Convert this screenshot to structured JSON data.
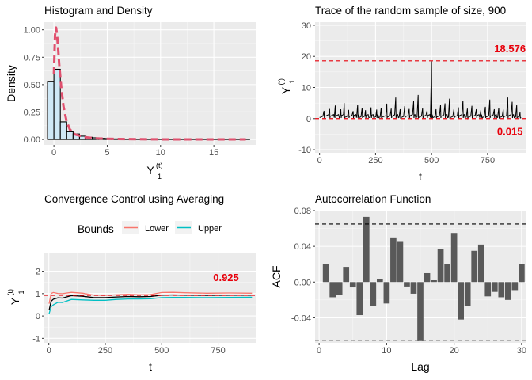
{
  "chart_data": [
    {
      "id": "hist",
      "type": "bar",
      "title": "Histogram and Density",
      "xlabel": "Y",
      "xlabel_sub": "1",
      "xlabel_sup": "(t)",
      "ylabel": "Density",
      "xlim": [
        -0.9,
        19.0
      ],
      "ylim": [
        -0.05,
        1.07
      ],
      "xticks": [
        0,
        5,
        10,
        15
      ],
      "yticks": [
        0.0,
        0.25,
        0.5,
        0.75,
        1.0
      ],
      "ytick_labels": [
        "0.00",
        "0.25",
        "0.50",
        "0.75",
        "1.00"
      ],
      "bin_width": 0.6,
      "bars": [
        {
          "x": -0.3,
          "value": 0.53
        },
        {
          "x": 0.3,
          "value": 0.64
        },
        {
          "x": 0.9,
          "value": 0.16
        },
        {
          "x": 1.5,
          "value": 0.07
        },
        {
          "x": 2.1,
          "value": 0.05
        },
        {
          "x": 2.7,
          "value": 0.03
        },
        {
          "x": 3.3,
          "value": 0.02
        },
        {
          "x": 3.9,
          "value": 0.015
        },
        {
          "x": 4.5,
          "value": 0.01
        },
        {
          "x": 5.1,
          "value": 0.008
        },
        {
          "x": 5.7,
          "value": 0.005
        },
        {
          "x": 6.3,
          "value": 0.004
        }
      ],
      "density_x": [
        0,
        0.1,
        0.2,
        0.3,
        0.4,
        0.5,
        0.7,
        0.9,
        1.2,
        1.5,
        2,
        3,
        4,
        5,
        6,
        8,
        10,
        12,
        15,
        18
      ],
      "density_y": [
        0.6,
        0.95,
        1.02,
        0.95,
        0.82,
        0.68,
        0.46,
        0.3,
        0.16,
        0.09,
        0.045,
        0.02,
        0.01,
        0.006,
        0.004,
        0.002,
        0.001,
        0.001,
        0.001,
        0.001
      ],
      "bar_fill": "#cfe8f6",
      "bar_stroke": "#000000",
      "density_color": "#e0506e"
    },
    {
      "id": "trace",
      "type": "line",
      "title": "Trace of the random sample of size,  900",
      "xlabel": "t",
      "ylabel": "Y",
      "ylabel_sub": "1",
      "ylabel_sup": "(t)",
      "xlim": [
        -20,
        920
      ],
      "ylim": [
        -11,
        31
      ],
      "xticks": [
        0,
        250,
        500,
        750
      ],
      "yticks": [
        -10,
        0,
        10,
        20,
        30
      ],
      "upper_bound": 18.576,
      "lower_bound": 0.015,
      "upper_label": "18.576",
      "lower_label": "0.015",
      "spikes": [
        {
          "t": 20,
          "value": 2.5
        },
        {
          "t": 45,
          "value": 3.1
        },
        {
          "t": 70,
          "value": 4.2
        },
        {
          "t": 95,
          "value": 3.0
        },
        {
          "t": 110,
          "value": 5.0
        },
        {
          "t": 130,
          "value": 2.8
        },
        {
          "t": 150,
          "value": 2.4
        },
        {
          "t": 170,
          "value": 4.4
        },
        {
          "t": 190,
          "value": 3.4
        },
        {
          "t": 205,
          "value": 2.7
        },
        {
          "t": 230,
          "value": 3.6
        },
        {
          "t": 255,
          "value": 2.9
        },
        {
          "t": 275,
          "value": 3.5
        },
        {
          "t": 300,
          "value": 4.8
        },
        {
          "t": 320,
          "value": 3.2
        },
        {
          "t": 340,
          "value": 6.8
        },
        {
          "t": 360,
          "value": 3.0
        },
        {
          "t": 380,
          "value": 4.0
        },
        {
          "t": 400,
          "value": 3.1
        },
        {
          "t": 420,
          "value": 5.6
        },
        {
          "t": 440,
          "value": 7.6
        },
        {
          "t": 460,
          "value": 3.3
        },
        {
          "t": 480,
          "value": 2.6
        },
        {
          "t": 500,
          "value": 18.4
        },
        {
          "t": 520,
          "value": 3.0
        },
        {
          "t": 540,
          "value": 4.4
        },
        {
          "t": 560,
          "value": 4.9
        },
        {
          "t": 580,
          "value": 6.4
        },
        {
          "t": 600,
          "value": 3.0
        },
        {
          "t": 620,
          "value": 3.6
        },
        {
          "t": 640,
          "value": 5.8
        },
        {
          "t": 660,
          "value": 3.2
        },
        {
          "t": 680,
          "value": 4.1
        },
        {
          "t": 700,
          "value": 3.0
        },
        {
          "t": 720,
          "value": 2.7
        },
        {
          "t": 740,
          "value": 3.8
        },
        {
          "t": 760,
          "value": 6.1
        },
        {
          "t": 780,
          "value": 3.0
        },
        {
          "t": 800,
          "value": 3.4
        },
        {
          "t": 820,
          "value": 2.9
        },
        {
          "t": 840,
          "value": 6.8
        },
        {
          "t": 860,
          "value": 5.4
        },
        {
          "t": 880,
          "value": 4.4
        },
        {
          "t": 895,
          "value": 2.0
        }
      ],
      "line_color": "#000000",
      "bound_color": "#e8000b"
    },
    {
      "id": "conv",
      "type": "line",
      "title": "Convergence Control using Averaging",
      "xlabel": "t",
      "ylabel": "Y",
      "ylabel_sub": "1",
      "ylabel_sup": "(t)",
      "xlim": [
        -20,
        920
      ],
      "ylim": [
        -1.2,
        2.8
      ],
      "xticks": [
        0,
        250,
        500,
        750
      ],
      "yticks": [
        -1,
        0,
        1,
        2
      ],
      "reference": 0.925,
      "reference_label": "0.925",
      "legend_title": "Bounds",
      "legend_position": "top",
      "series": [
        {
          "name": "Lower",
          "color": "#f8766d",
          "x": [
            1,
            10,
            20,
            40,
            60,
            100,
            150,
            200,
            250,
            300,
            350,
            400,
            450,
            500,
            550,
            600,
            700,
            800,
            900
          ],
          "y": [
            0.6,
            0.95,
            1.1,
            0.95,
            1.05,
            1.0,
            1.02,
            0.93,
            0.92,
            0.95,
            0.97,
            0.95,
            0.96,
            1.05,
            1.06,
            1.04,
            1.02,
            1.03,
            1.02
          ]
        },
        {
          "name": "",
          "color": "#000000",
          "x": [
            1,
            10,
            20,
            40,
            60,
            100,
            150,
            200,
            250,
            300,
            350,
            400,
            450,
            500,
            550,
            600,
            700,
            800,
            900
          ],
          "y": [
            0.3,
            0.6,
            0.8,
            0.75,
            0.85,
            0.85,
            0.88,
            0.82,
            0.82,
            0.85,
            0.87,
            0.86,
            0.87,
            0.93,
            0.94,
            0.93,
            0.92,
            0.93,
            0.93
          ]
        },
        {
          "name": "Upper",
          "color": "#00bfc4",
          "x": [
            1,
            10,
            20,
            40,
            60,
            100,
            150,
            200,
            250,
            300,
            350,
            400,
            450,
            500,
            550,
            600,
            700,
            800,
            900
          ],
          "y": [
            0.15,
            0.35,
            0.55,
            0.55,
            0.65,
            0.68,
            0.72,
            0.7,
            0.7,
            0.74,
            0.76,
            0.76,
            0.77,
            0.82,
            0.83,
            0.83,
            0.82,
            0.83,
            0.84
          ]
        }
      ],
      "reference_color": "#e8000b"
    },
    {
      "id": "acf",
      "type": "bar",
      "title": "Autocorrelation Function",
      "xlabel": "Lag",
      "ylabel": "ACF",
      "xlim": [
        -0.6,
        30.6
      ],
      "ylim": [
        -0.068,
        0.08
      ],
      "xticks": [
        0,
        10,
        20,
        30
      ],
      "yticks": [
        -0.04,
        0.0,
        0.04,
        0.08
      ],
      "ytick_labels": [
        "-0.04",
        "0.00",
        "0.04",
        "0.08"
      ],
      "ci": 0.065,
      "lags": [
        1,
        2,
        3,
        4,
        5,
        6,
        7,
        8,
        9,
        10,
        11,
        12,
        13,
        14,
        15,
        16,
        17,
        18,
        19,
        20,
        21,
        22,
        23,
        24,
        25,
        26,
        27,
        28,
        29,
        30
      ],
      "values": [
        0.02,
        -0.017,
        -0.014,
        0.017,
        -0.006,
        -0.037,
        0.073,
        -0.027,
        0.003,
        -0.024,
        0.05,
        0.045,
        -0.005,
        -0.013,
        -0.066,
        0.01,
        0.002,
        0.037,
        0.02,
        0.055,
        -0.042,
        -0.027,
        0.035,
        0.042,
        -0.016,
        -0.011,
        -0.017,
        -0.02,
        -0.009,
        0.02
      ],
      "bar_color": "#595959",
      "ci_color": "#000000"
    }
  ]
}
